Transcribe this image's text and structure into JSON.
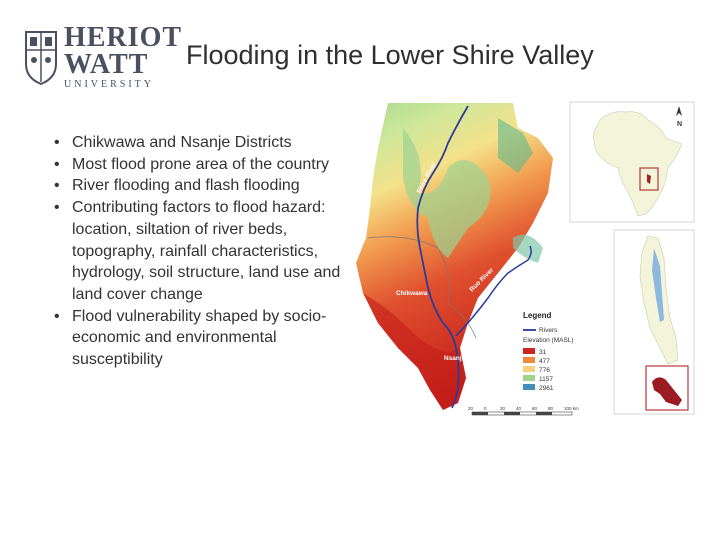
{
  "logo": {
    "line1": "HERIOT",
    "line2": "WATT",
    "line3": "UNIVERSITY"
  },
  "title": "Flooding in the Lower Shire Valley",
  "bullets": [
    "Chikwawa and Nsanje Districts",
    "Most flood prone area of the country",
    "River flooding and flash flooding",
    "Contributing factors to flood hazard: location, siltation of river beds, topography, rainfall characteristics, hydrology, soil structure, land use and land cover change",
    "Flood vulnerability shaped by socio-economic and environmental susceptibility"
  ],
  "map": {
    "labels": {
      "shire": "Shire River",
      "ruo": "Ruo River",
      "chikwawa": "Chikwawa",
      "nsanje": "Nsanje"
    },
    "north": "N",
    "legend": {
      "title": "Legend",
      "rivers": "Rivers",
      "elevation_title": "Elevation (MASL)",
      "classes": [
        {
          "label": "31",
          "color": "#c8261f"
        },
        {
          "label": "477",
          "color": "#f08a3a"
        },
        {
          "label": "776",
          "color": "#f7d07c"
        },
        {
          "label": "1157",
          "color": "#9fd38f"
        },
        {
          "label": "2961",
          "color": "#3f8fb8"
        }
      ]
    },
    "scale_labels": [
      "20",
      "0",
      "20",
      "40",
      "60",
      "80",
      "100 km"
    ]
  }
}
